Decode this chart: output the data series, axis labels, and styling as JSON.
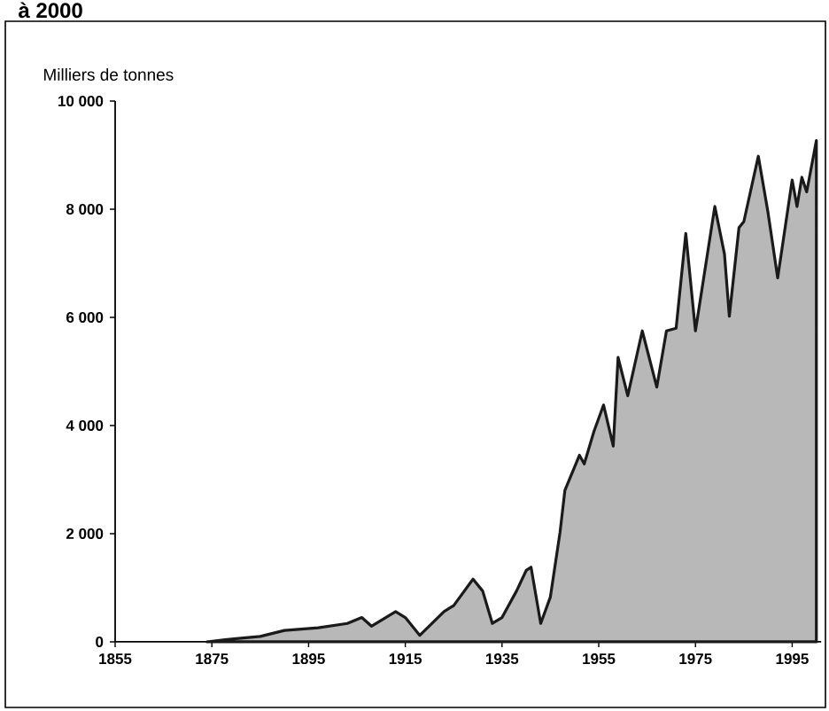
{
  "chart_data": {
    "type": "area",
    "title": "à 2000",
    "ylabel": "Milliers de tonnes",
    "x": [
      1874,
      1880,
      1885,
      1890,
      1897,
      1903,
      1906,
      1908,
      1913,
      1915,
      1918,
      1923,
      1925,
      1929,
      1931,
      1933,
      1935,
      1938,
      1940,
      1941,
      1943,
      1945,
      1947,
      1948,
      1951,
      1952,
      1954,
      1956,
      1958,
      1959,
      1961,
      1964,
      1967,
      1969,
      1971,
      1973,
      1975,
      1979,
      1981,
      1982,
      1984,
      1985,
      1988,
      1990,
      1992,
      1995,
      1996,
      1997,
      1998,
      2000
    ],
    "series": [
      {
        "color": "#1a1a1a",
        "values": [
          0,
          60,
          100,
          210,
          260,
          340,
          450,
          290,
          560,
          450,
          120,
          560,
          670,
          1160,
          940,
          340,
          450,
          940,
          1320,
          1380,
          340,
          830,
          2030,
          2800,
          3450,
          3290,
          3890,
          4380,
          3620,
          5260,
          4550,
          5750,
          4710,
          5750,
          5800,
          7550,
          5750,
          8050,
          7170,
          6020,
          7660,
          7770,
          8980,
          7940,
          6730,
          8540,
          8050,
          8590,
          8320,
          9270
        ]
      }
    ],
    "xlim": [
      1855,
      2001
    ],
    "xticks": [
      1855,
      1875,
      1895,
      1915,
      1935,
      1955,
      1975,
      1995
    ],
    "ylim": [
      0,
      10000
    ],
    "yticks": [
      0,
      {
        "value": 2000,
        "label": "2 000"
      },
      {
        "value": 4000,
        "label": "4 000"
      },
      {
        "value": 6000,
        "label": "6 000"
      },
      {
        "value": 8000,
        "label": "8 000"
      },
      {
        "value": 10000,
        "label": "10 000"
      }
    ],
    "line_style": "solid"
  }
}
